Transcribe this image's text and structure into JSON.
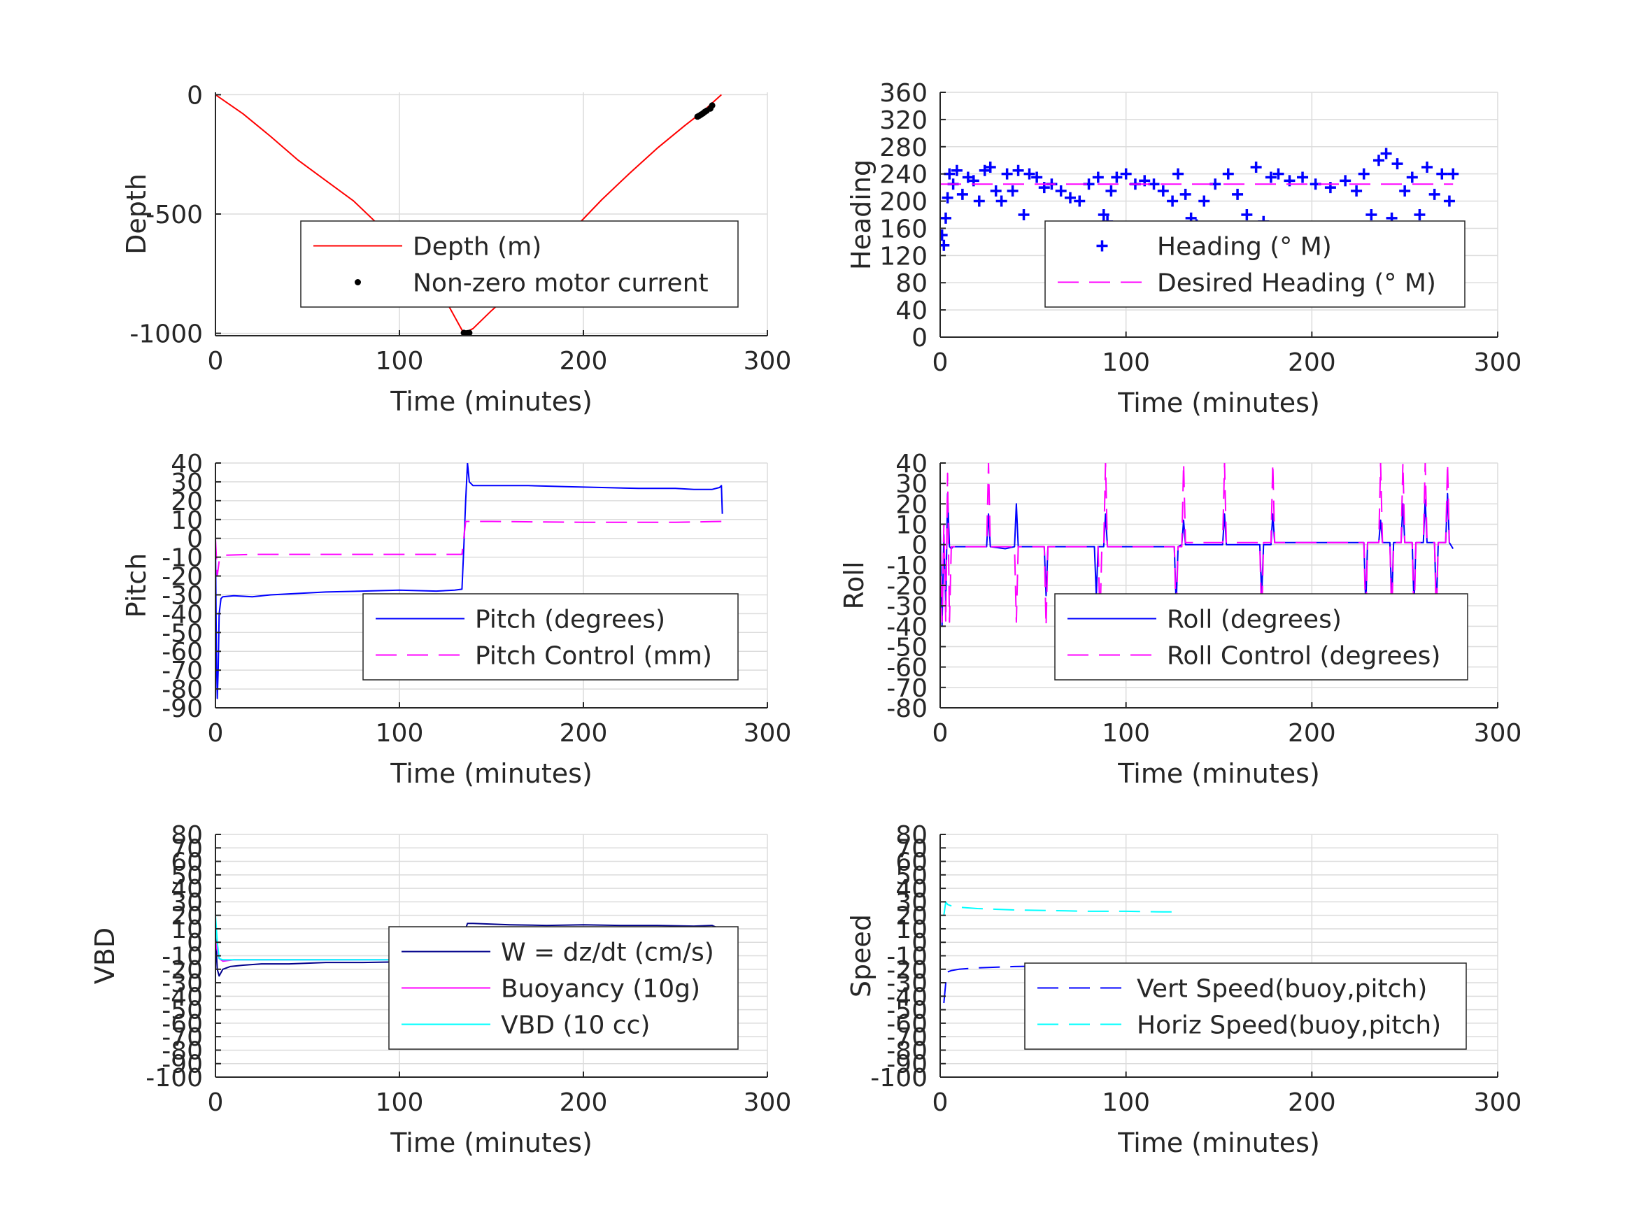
{
  "figure": {
    "background": "#ffffff",
    "axis_color": "#262626",
    "grid_color": "#dcdcdc"
  },
  "chart_data": [
    {
      "id": "depth",
      "type": "line",
      "xlabel": "Time (minutes)",
      "ylabel": "Depth",
      "xlim": [
        0,
        300
      ],
      "ylim": [
        -1010,
        10
      ],
      "xticks": [
        0,
        100,
        200,
        300
      ],
      "yticks": [
        -1000,
        -500,
        0
      ],
      "ytick_labels": [
        "-1000",
        "-500",
        "0"
      ],
      "grid": true,
      "legend_placement": "center-right",
      "series": [
        {
          "name": "Depth (m)",
          "color": "#ff0000",
          "style": "solid",
          "x": [
            0,
            15,
            30,
            45,
            60,
            75,
            90,
            105,
            120,
            135,
            140,
            150,
            165,
            180,
            195,
            210,
            225,
            240,
            255,
            265,
            275
          ],
          "y": [
            0,
            -80,
            -175,
            -275,
            -360,
            -445,
            -555,
            -670,
            -790,
            -1000,
            -980,
            -905,
            -800,
            -690,
            -560,
            -440,
            -330,
            -225,
            -130,
            -70,
            0
          ]
        },
        {
          "name": "Non-zero motor current",
          "color": "#000000",
          "style": "marker-dot",
          "x": [
            135,
            136,
            137,
            138,
            262,
            263,
            264,
            265,
            266,
            267,
            269,
            270
          ],
          "y": [
            -998,
            -1000,
            -999,
            -998,
            -92,
            -88,
            -83,
            -78,
            -72,
            -67,
            -58,
            -45
          ]
        }
      ]
    },
    {
      "id": "heading",
      "type": "scatter",
      "xlabel": "Time (minutes)",
      "ylabel": "Heading",
      "xlim": [
        0,
        300
      ],
      "ylim": [
        0,
        360
      ],
      "xticks": [
        0,
        100,
        200,
        300
      ],
      "yticks": [
        0,
        40,
        80,
        120,
        160,
        200,
        240,
        280,
        320,
        360
      ],
      "ytick_labels": [
        "0",
        "40",
        "80",
        "120",
        "160",
        "200",
        "240",
        "280",
        "320",
        "360"
      ],
      "grid": true,
      "legend_placement": "lower-right",
      "series": [
        {
          "name": "Heading (° M)",
          "color": "#0000ff",
          "style": "marker-plus",
          "x": [
            1,
            2,
            3,
            4,
            5,
            7,
            9,
            12,
            15,
            18,
            21,
            24,
            27,
            30,
            33,
            36,
            39,
            42,
            45,
            48,
            52,
            56,
            60,
            65,
            70,
            75,
            80,
            85,
            88,
            90,
            92,
            95,
            100,
            105,
            110,
            115,
            120,
            125,
            128,
            132,
            135,
            138,
            142,
            148,
            155,
            160,
            165,
            170,
            174,
            176,
            178,
            182,
            188,
            195,
            202,
            210,
            218,
            224,
            228,
            232,
            236,
            240,
            243,
            246,
            250,
            254,
            258,
            262,
            266,
            270,
            274,
            276
          ],
          "y": [
            150,
            135,
            175,
            205,
            240,
            225,
            245,
            210,
            235,
            230,
            200,
            245,
            250,
            215,
            200,
            240,
            215,
            245,
            180,
            240,
            235,
            220,
            225,
            215,
            205,
            200,
            225,
            235,
            180,
            170,
            215,
            235,
            240,
            225,
            230,
            225,
            215,
            200,
            240,
            210,
            175,
            165,
            200,
            225,
            240,
            210,
            180,
            250,
            170,
            160,
            235,
            240,
            230,
            235,
            225,
            220,
            230,
            215,
            240,
            180,
            260,
            270,
            175,
            255,
            215,
            235,
            180,
            250,
            210,
            240,
            200,
            240
          ]
        },
        {
          "name": "Desired Heading (° M)",
          "color": "#ff00ff",
          "style": "dashed",
          "x": [
            0,
            276
          ],
          "y": [
            225,
            225
          ]
        }
      ]
    },
    {
      "id": "pitch",
      "type": "line",
      "xlabel": "Time (minutes)",
      "ylabel": "Pitch",
      "xlim": [
        0,
        300
      ],
      "ylim": [
        -90,
        40
      ],
      "xticks": [
        0,
        100,
        200,
        300
      ],
      "yticks": [
        -90,
        -80,
        -70,
        -60,
        -50,
        -40,
        -30,
        -20,
        -10,
        0,
        10,
        20,
        30,
        40
      ],
      "ytick_labels": [
        "-90",
        "-80",
        "-70",
        "-60",
        "-50",
        "-40",
        "-30",
        "-20",
        "-10",
        "0",
        "10",
        "20",
        "30",
        "40"
      ],
      "grid": true,
      "legend_placement": "lower-right",
      "series": [
        {
          "name": "Pitch (degrees)",
          "color": "#0000ff",
          "style": "solid",
          "x": [
            0,
            0.5,
            1,
            1.5,
            2,
            3,
            4,
            10,
            20,
            30,
            40,
            50,
            60,
            80,
            100,
            120,
            130,
            134,
            135,
            136,
            137,
            138,
            140,
            150,
            170,
            190,
            210,
            230,
            250,
            260,
            270,
            274,
            275,
            275.5
          ],
          "y": [
            0,
            -60,
            -85,
            -70,
            -40,
            -32,
            -31,
            -30.5,
            -31,
            -30,
            -29.5,
            -29,
            -28.5,
            -28,
            -27.5,
            -28,
            -27.5,
            -27,
            -5,
            20,
            40,
            30,
            28,
            28,
            28,
            27.5,
            27,
            26.5,
            26.5,
            26,
            26,
            27,
            28,
            13
          ]
        },
        {
          "name": "Pitch Control (mm)",
          "color": "#ff00ff",
          "style": "dashed",
          "x": [
            0,
            1,
            2,
            4,
            20,
            60,
            100,
            130,
            134,
            136,
            138,
            150,
            200,
            250,
            275
          ],
          "y": [
            0,
            -20,
            -12,
            -9,
            -8.5,
            -8.5,
            -8.5,
            -8.5,
            -8.5,
            9,
            9,
            9,
            8.5,
            8.5,
            9
          ]
        }
      ]
    },
    {
      "id": "roll",
      "type": "line",
      "xlabel": "Time (minutes)",
      "ylabel": "Roll",
      "xlim": [
        0,
        300
      ],
      "ylim": [
        -80,
        40
      ],
      "xticks": [
        0,
        100,
        200,
        300
      ],
      "yticks": [
        -80,
        -70,
        -60,
        -50,
        -40,
        -30,
        -20,
        -10,
        0,
        10,
        20,
        30,
        40
      ],
      "ytick_labels": [
        "-80",
        "-70",
        "-60",
        "-50",
        "-40",
        "-30",
        "-20",
        "-10",
        "0",
        "10",
        "20",
        "30",
        "40"
      ],
      "grid": true,
      "legend_placement": "lower-right",
      "series": [
        {
          "name": "Roll (degrees)",
          "color": "#0000ff",
          "style": "solid",
          "x": [
            0,
            1,
            2,
            3,
            4,
            5,
            6,
            7,
            10,
            20,
            25,
            26,
            27,
            35,
            40,
            41,
            42,
            50,
            56,
            57,
            58,
            70,
            83,
            84,
            85,
            88,
            89,
            90,
            100,
            110,
            126,
            127,
            128,
            130,
            131,
            132,
            140,
            152,
            153,
            154,
            160,
            172,
            173,
            174,
            178,
            179,
            180,
            190,
            200,
            210,
            220,
            228,
            229,
            230,
            236,
            237,
            238,
            242,
            243,
            244,
            248,
            249,
            250,
            254,
            255,
            256,
            260,
            261,
            262,
            266,
            267,
            268,
            272,
            273,
            274,
            276
          ],
          "y": [
            10,
            -40,
            5,
            -30,
            25,
            -1,
            -2,
            -1,
            -1,
            -1,
            -1,
            15,
            -1,
            -2,
            -1,
            20,
            -1,
            -1,
            -1,
            -25,
            -1,
            -1,
            -1,
            -25,
            -1,
            -1,
            15,
            -1,
            -1,
            -1,
            -1,
            -30,
            -1,
            0,
            12,
            0,
            0,
            0,
            15,
            0,
            0,
            0,
            -25,
            0,
            0,
            15,
            1,
            1,
            1,
            1,
            1,
            1,
            -30,
            1,
            1,
            12,
            1,
            1,
            -28,
            1,
            1,
            20,
            1,
            1,
            -30,
            1,
            1,
            22,
            1,
            1,
            -32,
            1,
            1,
            25,
            1,
            -2
          ]
        },
        {
          "name": "Roll Control (degrees)",
          "color": "#ff00ff",
          "style": "dashed",
          "x": [
            0,
            1,
            2,
            3,
            4,
            5,
            6,
            8,
            10,
            25,
            26,
            27,
            40,
            41,
            42,
            56,
            57,
            58,
            85,
            86,
            87,
            88,
            89,
            90,
            126,
            127,
            128,
            130,
            131,
            132,
            152,
            153,
            154,
            172,
            173,
            174,
            178,
            179,
            180,
            228,
            229,
            230,
            236,
            237,
            238,
            242,
            243,
            244,
            248,
            249,
            250,
            254,
            255,
            256,
            260,
            261,
            262,
            266,
            267,
            268,
            272,
            273,
            274
          ],
          "y": [
            0,
            -38,
            10,
            -38,
            35,
            -38,
            -1,
            -1,
            -1,
            -1,
            40,
            -1,
            -1,
            -38,
            -1,
            -1,
            -40,
            -1,
            -1,
            -38,
            -1,
            -1,
            40,
            -1,
            -1,
            -38,
            -1,
            -1,
            40,
            1,
            1,
            40,
            1,
            1,
            -40,
            1,
            1,
            40,
            1,
            1,
            -38,
            1,
            1,
            40,
            1,
            1,
            -38,
            1,
            1,
            40,
            1,
            1,
            -38,
            1,
            1,
            40,
            1,
            1,
            -38,
            1,
            1,
            40,
            1
          ]
        }
      ]
    },
    {
      "id": "vbd",
      "type": "line",
      "xlabel": "Time (minutes)",
      "ylabel": "VBD",
      "xlim": [
        0,
        300
      ],
      "ylim": [
        -100,
        80
      ],
      "xticks": [
        0,
        100,
        200,
        300
      ],
      "yticks": [
        -100,
        -90,
        -80,
        -70,
        -60,
        -50,
        -40,
        -30,
        -20,
        -10,
        0,
        10,
        20,
        30,
        40,
        50,
        60,
        70,
        80
      ],
      "ytick_labels": [
        "-100",
        "-90",
        "-80",
        "-70",
        "-60",
        "-50",
        "-40",
        "-30",
        "-20",
        "-10",
        "0",
        "10",
        "20",
        "30",
        "40",
        "50",
        "60",
        "70",
        "80"
      ],
      "grid": true,
      "legend_placement": "lower-right",
      "series": [
        {
          "name": "W = dz/dt (cm/s)",
          "color": "#00008b",
          "style": "solid",
          "x": [
            0,
            1,
            2,
            4,
            8,
            15,
            25,
            40,
            60,
            80,
            100,
            120,
            130,
            134,
            135,
            136,
            137,
            140,
            160,
            180,
            200,
            220,
            240,
            260,
            270,
            274,
            275
          ],
          "y": [
            5,
            -20,
            -25,
            -20,
            -18,
            -17,
            -16,
            -16,
            -15,
            -15,
            -14.5,
            -14.5,
            -14.5,
            -15,
            -5,
            10,
            14,
            14,
            13,
            12.5,
            13,
            12.5,
            12.5,
            12,
            12.5,
            10,
            5
          ]
        },
        {
          "name": "Buoyancy (10g)",
          "color": "#ff00ff",
          "style": "solid",
          "x": [
            0,
            2,
            4,
            10,
            50,
            100,
            134,
            135,
            136,
            140,
            200,
            250,
            275
          ],
          "y": [
            0,
            -12,
            -14,
            -13,
            -13,
            -13,
            -13,
            -12,
            10,
            10,
            10,
            10,
            10
          ]
        },
        {
          "name": "VBD (10 cc)",
          "color": "#00ffff",
          "style": "solid",
          "x": [
            0,
            1,
            2,
            4,
            10,
            50,
            100,
            134,
            135,
            136,
            140,
            200,
            250,
            275
          ],
          "y": [
            20,
            0,
            -12,
            -13,
            -13,
            -13,
            -13,
            -13,
            -12,
            10,
            10,
            10,
            10,
            10
          ]
        }
      ]
    },
    {
      "id": "speed",
      "type": "line",
      "xlabel": "Time (minutes)",
      "ylabel": "Speed",
      "xlim": [
        0,
        300
      ],
      "ylim": [
        -100,
        80
      ],
      "xticks": [
        0,
        100,
        200,
        300
      ],
      "yticks": [
        -100,
        -90,
        -80,
        -70,
        -60,
        -50,
        -40,
        -30,
        -20,
        -10,
        0,
        10,
        20,
        30,
        40,
        50,
        60,
        70,
        80
      ],
      "ytick_labels": [
        "-100",
        "-90",
        "-80",
        "-70",
        "-60",
        "-50",
        "-40",
        "-30",
        "-20",
        "-10",
        "0",
        "10",
        "20",
        "30",
        "40",
        "50",
        "60",
        "70",
        "80"
      ],
      "grid": true,
      "legend_placement": "lower-right",
      "series": [
        {
          "name": "Vert Speed(buoy,pitch)",
          "color": "#0000ff",
          "style": "dashed",
          "x": [
            2,
            3,
            3.5,
            4,
            6,
            10,
            20,
            40,
            60,
            80,
            100,
            120,
            135
          ],
          "y": [
            -45,
            -30,
            -25,
            -22,
            -21,
            -20,
            -19,
            -18,
            -17.5,
            -17.5,
            -17,
            -17,
            -17
          ]
        },
        {
          "name": "Horiz Speed(buoy,pitch)",
          "color": "#00ffff",
          "style": "dashed",
          "x": [
            2,
            3,
            4,
            6,
            10,
            20,
            40,
            60,
            80,
            100,
            120,
            128
          ],
          "y": [
            20,
            30,
            28,
            27,
            26,
            25,
            24,
            23.5,
            23,
            23,
            22.5,
            22.5
          ]
        }
      ]
    }
  ]
}
